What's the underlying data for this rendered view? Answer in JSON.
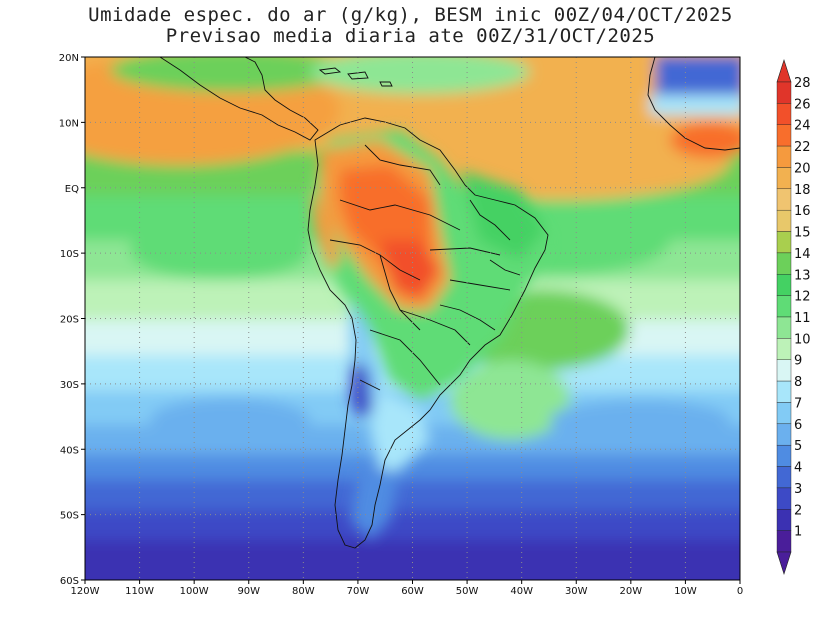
{
  "title_line1": "Umidade espec. do ar (g/kg), BESM inic 00Z/04/OCT/2025",
  "title_line2": "Previsao media diaria ate 00Z/31/OCT/2025",
  "map": {
    "lon_range": [
      -120,
      0
    ],
    "lat_range": [
      -60,
      20
    ],
    "lon_ticks": [
      {
        "value": -120,
        "label": "120W"
      },
      {
        "value": -110,
        "label": "110W"
      },
      {
        "value": -100,
        "label": "100W"
      },
      {
        "value": -90,
        "label": "90W"
      },
      {
        "value": -80,
        "label": "80W"
      },
      {
        "value": -70,
        "label": "70W"
      },
      {
        "value": -60,
        "label": "60W"
      },
      {
        "value": -50,
        "label": "50W"
      },
      {
        "value": -40,
        "label": "40W"
      },
      {
        "value": -30,
        "label": "30W"
      },
      {
        "value": -20,
        "label": "20W"
      },
      {
        "value": -10,
        "label": "10W"
      },
      {
        "value": 0,
        "label": "0"
      }
    ],
    "lat_ticks": [
      {
        "value": 20,
        "label": "20N"
      },
      {
        "value": 10,
        "label": "10N"
      },
      {
        "value": 0,
        "label": "EQ"
      },
      {
        "value": -10,
        "label": "10S"
      },
      {
        "value": -20,
        "label": "20S"
      },
      {
        "value": -30,
        "label": "30S"
      },
      {
        "value": -40,
        "label": "40S"
      },
      {
        "value": -50,
        "label": "50S"
      },
      {
        "value": -60,
        "label": "60S"
      }
    ],
    "grid": "dotted"
  },
  "colorbar": {
    "levels": [
      {
        "label": "28",
        "color": "#e0352a"
      },
      {
        "label": "26",
        "color": "#f2502a"
      },
      {
        "label": "24",
        "color": "#f86e2c"
      },
      {
        "label": "22",
        "color": "#f59a3e"
      },
      {
        "label": "20",
        "color": "#f2b150"
      },
      {
        "label": "18",
        "color": "#f0c470"
      },
      {
        "label": "16",
        "color": "#e8c86a"
      },
      {
        "label": "15",
        "color": "#a9cf4e"
      },
      {
        "label": "14",
        "color": "#6cd05a"
      },
      {
        "label": "13",
        "color": "#44d163"
      },
      {
        "label": "12",
        "color": "#5fdc76"
      },
      {
        "label": "11",
        "color": "#8ee694"
      },
      {
        "label": "10",
        "color": "#bdf2b8"
      },
      {
        "label": "9",
        "color": "#d9f6f4"
      },
      {
        "label": "8",
        "color": "#a8e6fa"
      },
      {
        "label": "7",
        "color": "#82cbf5"
      },
      {
        "label": "6",
        "color": "#6bb0ee"
      },
      {
        "label": "5",
        "color": "#4f8ce2"
      },
      {
        "label": "4",
        "color": "#4268d4"
      },
      {
        "label": "3",
        "color": "#3d4ac6"
      },
      {
        "label": "2",
        "color": "#3b31b2"
      },
      {
        "label": "1",
        "color": "#4a1e9a"
      }
    ],
    "top_color": "#e0352a",
    "bottom_color": "#4a1e9a"
  }
}
